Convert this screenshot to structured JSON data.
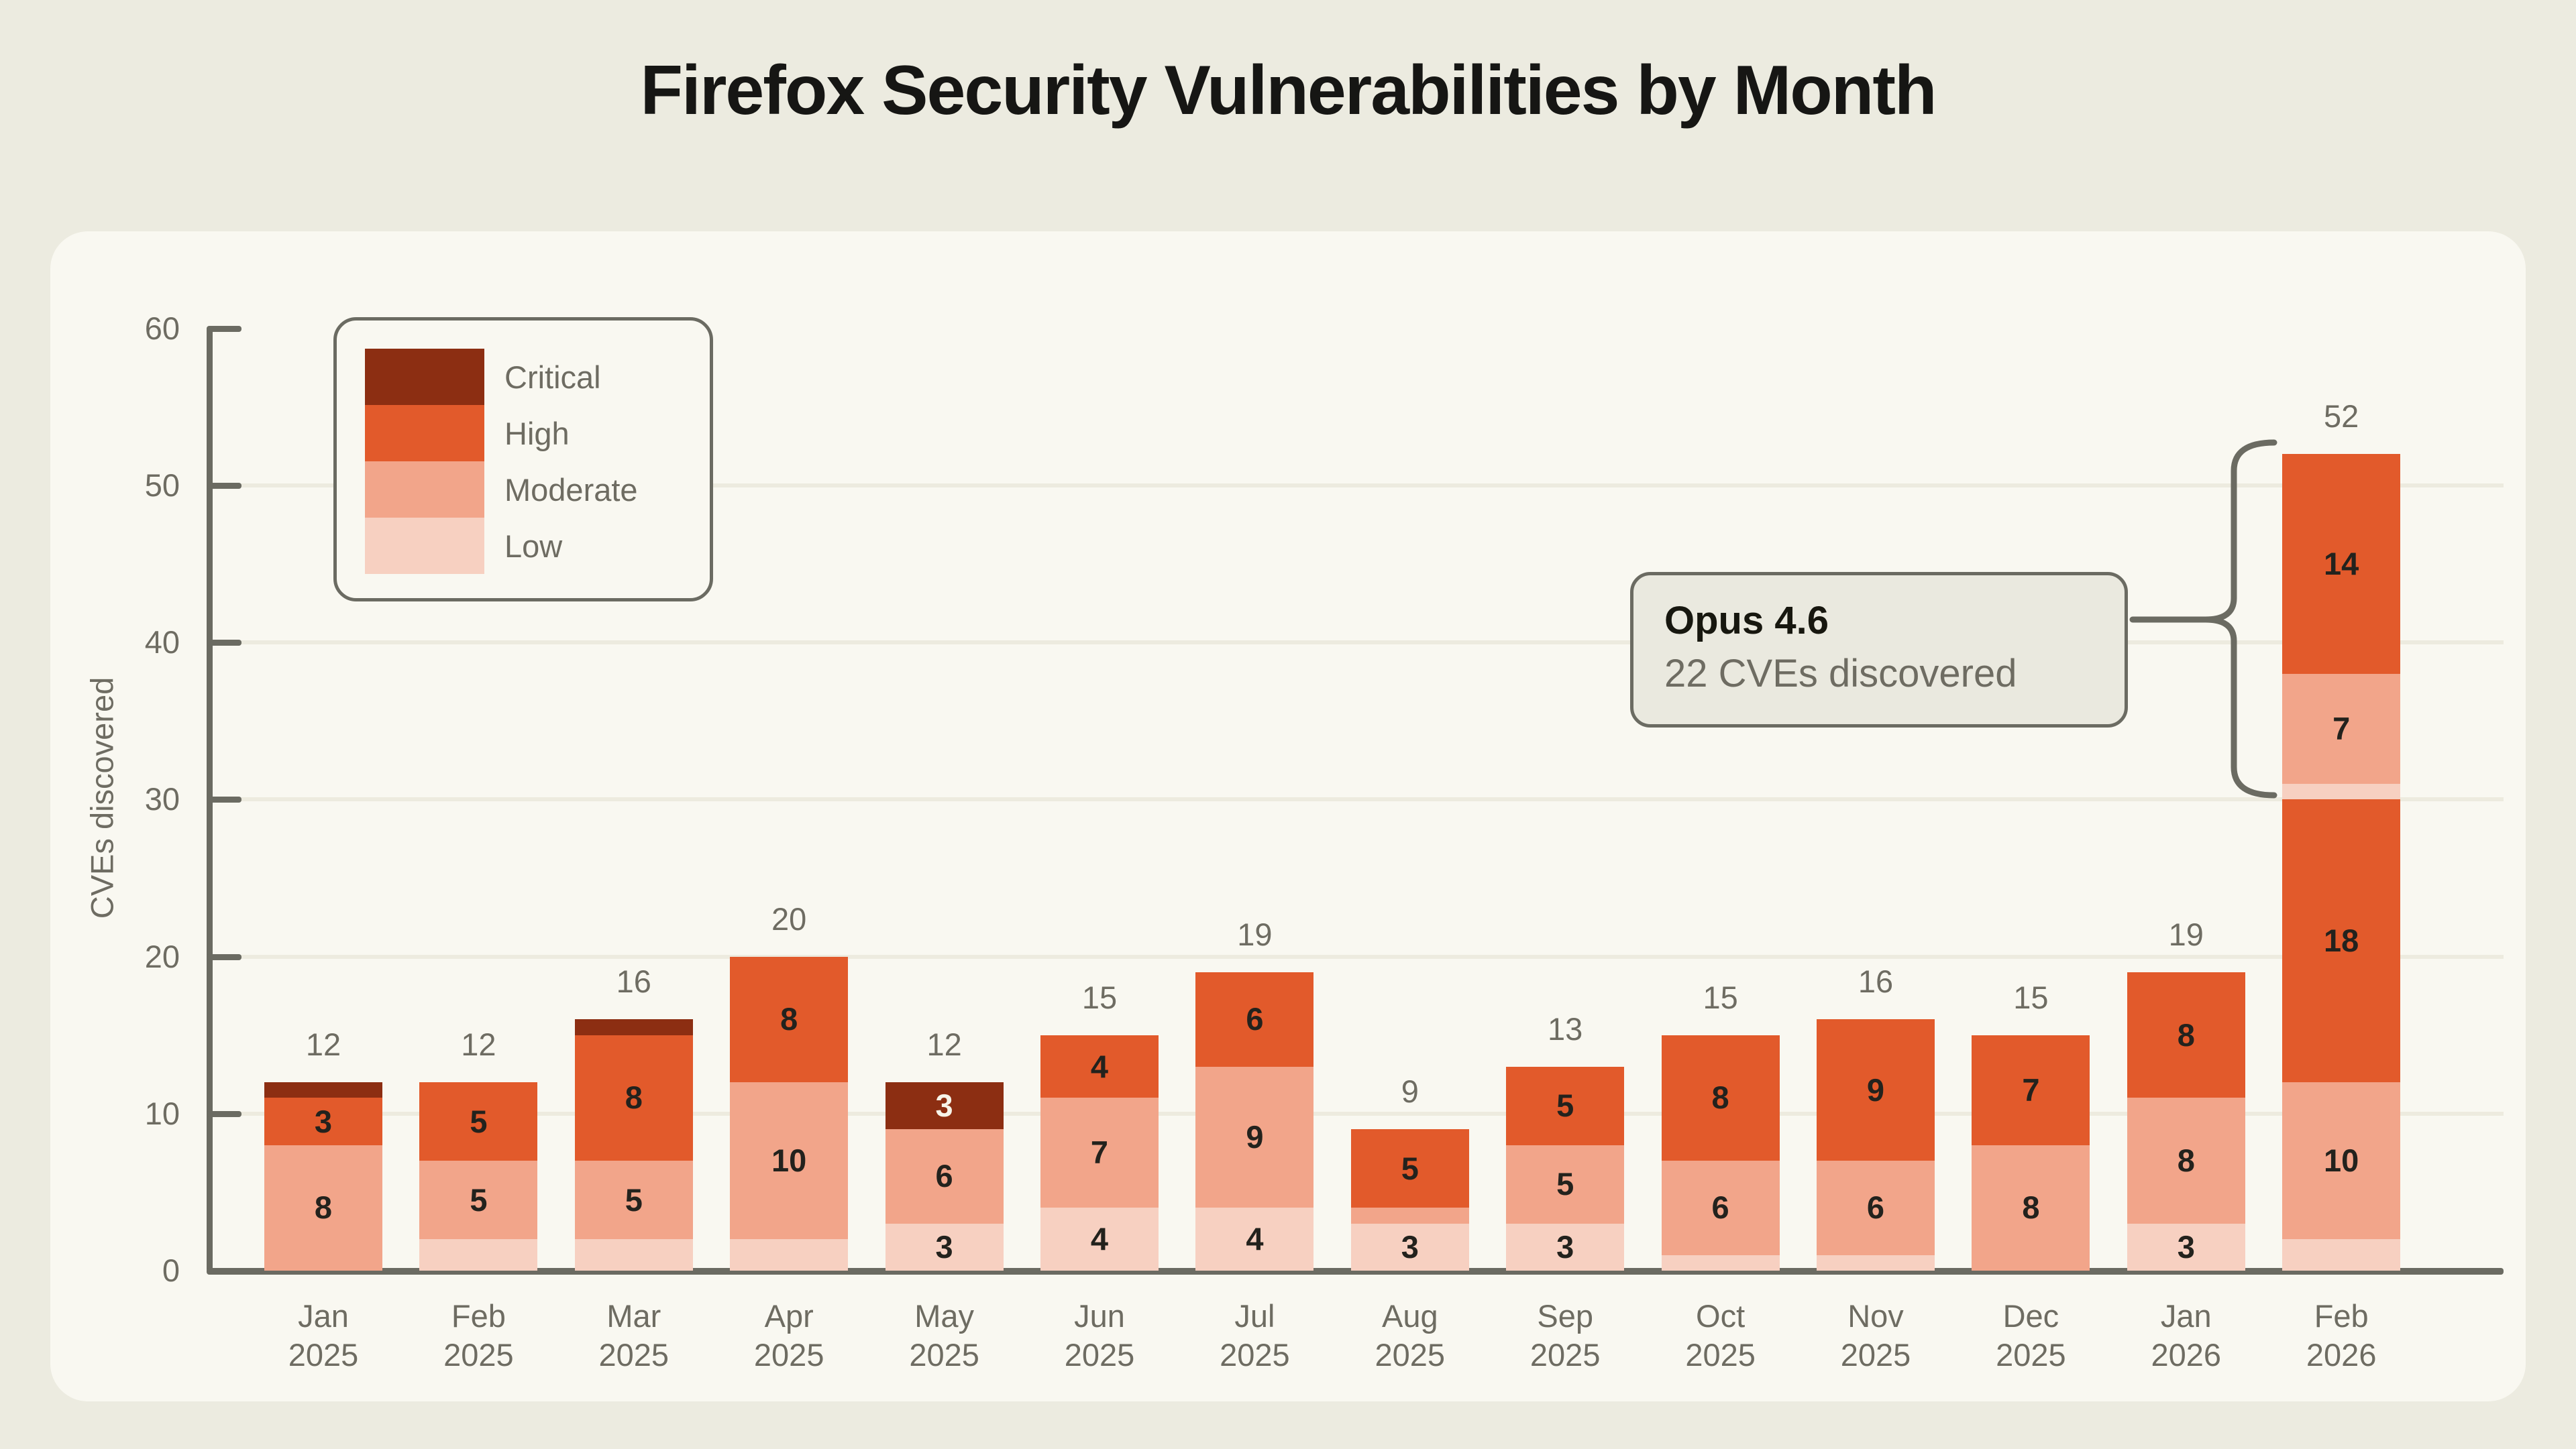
{
  "page": {
    "background": "#ECEBE0",
    "card_background": "#F9F8F1"
  },
  "chart_data": {
    "type": "bar",
    "stacked": true,
    "title": "Firefox Security Vulnerabilities by Month",
    "xlabel": "",
    "ylabel": "CVEs discovered",
    "ylim": [
      0,
      60
    ],
    "yticks": [
      0,
      10,
      20,
      30,
      40,
      50,
      60
    ],
    "grid": "horizontal-light",
    "legend_position": "upper-left",
    "value_labels_min": 3,
    "legend": [
      {
        "name": "Critical",
        "color": "#8C2E12"
      },
      {
        "name": "High",
        "color": "#E25A2B"
      },
      {
        "name": "Moderate",
        "color": "#F2A58A"
      },
      {
        "name": "Low",
        "color": "#F7D0C1"
      }
    ],
    "label_colors": {
      "default": "#23221D",
      "on_critical": "#F7F3E8",
      "axis": "#6E6C62"
    },
    "categories": [
      "Jan 2025",
      "Feb 2025",
      "Mar 2025",
      "Apr 2025",
      "May 2025",
      "Jun 2025",
      "Jul 2025",
      "Aug 2025",
      "Sep 2025",
      "Oct 2025",
      "Nov 2025",
      "Dec 2025",
      "Jan 2026",
      "Feb 2026"
    ],
    "bars": [
      {
        "month": "Jan",
        "year": "2025",
        "total": 12,
        "segments": [
          {
            "severity": "Moderate",
            "value": 8
          },
          {
            "severity": "High",
            "value": 3
          },
          {
            "severity": "Critical",
            "value": 1
          }
        ]
      },
      {
        "month": "Feb",
        "year": "2025",
        "total": 12,
        "segments": [
          {
            "severity": "Low",
            "value": 2
          },
          {
            "severity": "Moderate",
            "value": 5
          },
          {
            "severity": "High",
            "value": 5
          }
        ]
      },
      {
        "month": "Mar",
        "year": "2025",
        "total": 16,
        "segments": [
          {
            "severity": "Low",
            "value": 2
          },
          {
            "severity": "Moderate",
            "value": 5
          },
          {
            "severity": "High",
            "value": 8
          },
          {
            "severity": "Critical",
            "value": 1
          }
        ]
      },
      {
        "month": "Apr",
        "year": "2025",
        "total": 20,
        "segments": [
          {
            "severity": "Low",
            "value": 2
          },
          {
            "severity": "Moderate",
            "value": 10
          },
          {
            "severity": "High",
            "value": 8
          }
        ]
      },
      {
        "month": "May",
        "year": "2025",
        "total": 12,
        "segments": [
          {
            "severity": "Low",
            "value": 3
          },
          {
            "severity": "Moderate",
            "value": 6
          },
          {
            "severity": "Critical",
            "value": 3
          }
        ]
      },
      {
        "month": "Jun",
        "year": "2025",
        "total": 15,
        "segments": [
          {
            "severity": "Low",
            "value": 4
          },
          {
            "severity": "Moderate",
            "value": 7
          },
          {
            "severity": "High",
            "value": 4
          }
        ]
      },
      {
        "month": "Jul",
        "year": "2025",
        "total": 19,
        "segments": [
          {
            "severity": "Low",
            "value": 4
          },
          {
            "severity": "Moderate",
            "value": 9
          },
          {
            "severity": "High",
            "value": 6
          }
        ]
      },
      {
        "month": "Aug",
        "year": "2025",
        "total": 9,
        "segments": [
          {
            "severity": "Low",
            "value": 3
          },
          {
            "severity": "Moderate",
            "value": 1
          },
          {
            "severity": "High",
            "value": 5
          }
        ]
      },
      {
        "month": "Sep",
        "year": "2025",
        "total": 13,
        "segments": [
          {
            "severity": "Low",
            "value": 3
          },
          {
            "severity": "Moderate",
            "value": 5
          },
          {
            "severity": "High",
            "value": 5
          }
        ]
      },
      {
        "month": "Oct",
        "year": "2025",
        "total": 15,
        "segments": [
          {
            "severity": "Low",
            "value": 1
          },
          {
            "severity": "Moderate",
            "value": 6
          },
          {
            "severity": "High",
            "value": 8
          }
        ]
      },
      {
        "month": "Nov",
        "year": "2025",
        "total": 16,
        "segments": [
          {
            "severity": "Low",
            "value": 1
          },
          {
            "severity": "Moderate",
            "value": 6
          },
          {
            "severity": "High",
            "value": 9
          }
        ]
      },
      {
        "month": "Dec",
        "year": "2025",
        "total": 15,
        "segments": [
          {
            "severity": "Moderate",
            "value": 8
          },
          {
            "severity": "High",
            "value": 7
          }
        ]
      },
      {
        "month": "Jan",
        "year": "2026",
        "total": 19,
        "segments": [
          {
            "severity": "Low",
            "value": 3
          },
          {
            "severity": "Moderate",
            "value": 8
          },
          {
            "severity": "High",
            "value": 8
          }
        ]
      },
      {
        "month": "Feb",
        "year": "2026",
        "total": 52,
        "segments": [
          {
            "severity": "Low",
            "value": 2
          },
          {
            "severity": "Moderate",
            "value": 10
          },
          {
            "severity": "High",
            "value": 18
          },
          {
            "severity": "Low",
            "value": 1
          },
          {
            "severity": "Moderate",
            "value": 7
          },
          {
            "severity": "High",
            "value": 14
          }
        ]
      }
    ],
    "annotation": {
      "label": "Opus 4.6",
      "sublabel": "22 CVEs discovered",
      "applies_to": "Feb 2026",
      "covered_value": 22,
      "bracket_range": [
        30,
        52
      ]
    }
  }
}
